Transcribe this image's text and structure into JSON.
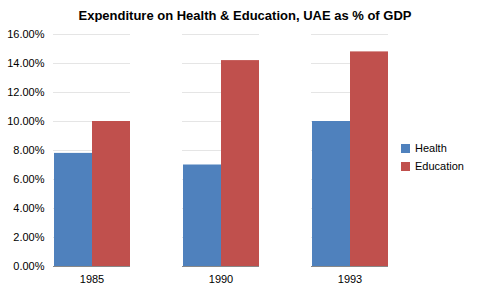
{
  "chart_data": {
    "type": "bar",
    "title": "Expenditure on Health & Education, UAE as % of GDP",
    "categories": [
      "1985",
      "1990",
      "1993"
    ],
    "series": [
      {
        "name": "Health",
        "color": "#4f81bd",
        "values": [
          7.8,
          7.0,
          10.0
        ]
      },
      {
        "name": "Education",
        "color": "#c0504d",
        "values": [
          10.0,
          14.2,
          14.8
        ]
      }
    ],
    "ylim": [
      0,
      16
    ],
    "yticks": [
      {
        "value": 0,
        "label": "0.00%"
      },
      {
        "value": 2,
        "label": "2.00%"
      },
      {
        "value": 4,
        "label": "4.00%"
      },
      {
        "value": 6,
        "label": "6.00%"
      },
      {
        "value": 8,
        "label": "8.00%"
      },
      {
        "value": 10,
        "label": "10.00%"
      },
      {
        "value": 12,
        "label": "12.00%"
      },
      {
        "value": 14,
        "label": "14.00%"
      },
      {
        "value": 16,
        "label": "16.00%"
      }
    ],
    "grid": true,
    "legend": "right"
  }
}
